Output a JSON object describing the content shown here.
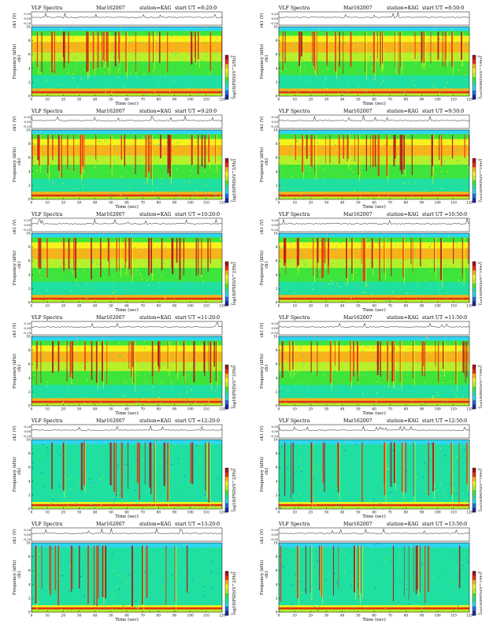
{
  "page": {
    "caption": "VLF Spectra",
    "date": "Mar162007",
    "station": "station=KAG",
    "start_prefix": "start  UT ="
  },
  "panel_text": {
    "amp_label": "ch1 (V)",
    "freq_label": "Frequency (kHz)",
    "channel_label": "ch1",
    "time_label": "Time (sec)",
    "colorbar_label": "log10(PSD)(V^2/Hz)"
  },
  "colors": {
    "colormap": [
      "#1a2a9a",
      "#1f6fe0",
      "#2fd6f0",
      "#1fe0a0",
      "#3fe43a",
      "#b6f02a",
      "#f7f31a",
      "#f8b21a",
      "#e8300f",
      "#a8101a"
    ]
  },
  "chart_data": [
    {
      "type": "heatmap",
      "start_ut": "8:20:0",
      "xlim": [
        0,
        120
      ],
      "ylim": [
        0,
        10
      ],
      "x_ticks": [
        0,
        10,
        20,
        30,
        40,
        50,
        60,
        70,
        80,
        90,
        100,
        110,
        120
      ],
      "y_ticks": [
        0,
        2,
        4,
        6,
        8,
        10
      ],
      "amp_ticks": [
        "0.20",
        "0.00",
        "-0.20"
      ],
      "colorbar_ticks": [
        "-5",
        "-7"
      ],
      "activity": "strong"
    },
    {
      "type": "heatmap",
      "start_ut": "8:50:0",
      "xlim": [
        0,
        120
      ],
      "ylim": [
        0,
        10
      ],
      "x_ticks": [
        0,
        10,
        20,
        30,
        40,
        50,
        60,
        70,
        80,
        90,
        100,
        110,
        120
      ],
      "y_ticks": [
        0,
        2,
        4,
        6,
        8,
        10
      ],
      "amp_ticks": [
        "0.20",
        "0.00",
        "-0.20"
      ],
      "colorbar_ticks": [
        "-5",
        "-7"
      ],
      "activity": "strong"
    },
    {
      "type": "heatmap",
      "start_ut": "9:20:0",
      "xlim": [
        0,
        120
      ],
      "ylim": [
        0,
        10
      ],
      "x_ticks": [
        0,
        10,
        20,
        30,
        40,
        50,
        60,
        70,
        80,
        90,
        100,
        110,
        120
      ],
      "y_ticks": [
        0,
        2,
        4,
        6,
        8,
        10
      ],
      "amp_ticks": [
        "0.20",
        "0.00",
        "-0.20"
      ],
      "colorbar_ticks": [
        "-5",
        "-7"
      ],
      "activity": "strong"
    },
    {
      "type": "heatmap",
      "start_ut": "9:50:0",
      "xlim": [
        0,
        120
      ],
      "ylim": [
        0,
        10
      ],
      "x_ticks": [
        0,
        10,
        20,
        30,
        40,
        50,
        60,
        70,
        80,
        90,
        100,
        110,
        120
      ],
      "y_ticks": [
        0,
        2,
        4,
        6,
        8,
        10
      ],
      "amp_ticks": [
        "0.20",
        "0.00",
        "-0.20"
      ],
      "colorbar_ticks": [
        "-5",
        "-7"
      ],
      "activity": "strong"
    },
    {
      "type": "heatmap",
      "start_ut": "10:20:0",
      "xlim": [
        0,
        120
      ],
      "ylim": [
        0,
        10
      ],
      "x_ticks": [
        0,
        10,
        20,
        30,
        40,
        50,
        60,
        70,
        80,
        90,
        100,
        110,
        120
      ],
      "y_ticks": [
        0,
        2,
        4,
        6,
        8,
        10
      ],
      "amp_ticks": [
        "0.20",
        "0.00",
        "-0.20"
      ],
      "colorbar_ticks": [
        "-5",
        "-7"
      ],
      "activity": "strong"
    },
    {
      "type": "heatmap",
      "start_ut": "10:50:0",
      "xlim": [
        0,
        120
      ],
      "ylim": [
        0,
        10
      ],
      "x_ticks": [
        0,
        10,
        20,
        30,
        40,
        50,
        60,
        70,
        80,
        90,
        100,
        110,
        120
      ],
      "y_ticks": [
        0,
        2,
        4,
        6,
        8,
        10
      ],
      "amp_ticks": [
        "0.20",
        "0.00",
        "-0.20"
      ],
      "colorbar_ticks": [
        "-5",
        "-7"
      ],
      "activity": "strong"
    },
    {
      "type": "heatmap",
      "start_ut": "11:20:0",
      "xlim": [
        0,
        120
      ],
      "ylim": [
        0,
        10
      ],
      "x_ticks": [
        0,
        10,
        20,
        30,
        40,
        50,
        60,
        70,
        80,
        90,
        100,
        110,
        120
      ],
      "y_ticks": [
        0,
        2,
        4,
        6,
        8,
        10
      ],
      "amp_ticks": [
        "0.20",
        "0.00",
        "-0.20"
      ],
      "colorbar_ticks": [
        "-5",
        "-7"
      ],
      "activity": "strong"
    },
    {
      "type": "heatmap",
      "start_ut": "11:50:0",
      "xlim": [
        0,
        120
      ],
      "ylim": [
        0,
        10
      ],
      "x_ticks": [
        0,
        10,
        20,
        30,
        40,
        50,
        60,
        70,
        80,
        90,
        100,
        110,
        120
      ],
      "y_ticks": [
        0,
        2,
        4,
        6,
        8,
        10
      ],
      "amp_ticks": [
        "0.20",
        "0.00",
        "-0.20"
      ],
      "colorbar_ticks": [
        "-5",
        "-7"
      ],
      "activity": "strong"
    },
    {
      "type": "heatmap",
      "start_ut": "12:20:0",
      "xlim": [
        0,
        120
      ],
      "ylim": [
        0,
        10
      ],
      "x_ticks": [
        0,
        10,
        20,
        30,
        40,
        50,
        60,
        70,
        80,
        90,
        100,
        110,
        120
      ],
      "y_ticks": [
        0,
        2,
        4,
        6,
        8,
        10
      ],
      "amp_ticks": [
        "0.20",
        "0.00",
        "-0.20"
      ],
      "colorbar_ticks": [
        "-5",
        "-7"
      ],
      "activity": "weak"
    },
    {
      "type": "heatmap",
      "start_ut": "12:50:0",
      "xlim": [
        0,
        120
      ],
      "ylim": [
        0,
        10
      ],
      "x_ticks": [
        0,
        10,
        20,
        30,
        40,
        50,
        60,
        70,
        80,
        90,
        100,
        110,
        120
      ],
      "y_ticks": [
        0,
        2,
        4,
        6,
        8,
        10
      ],
      "amp_ticks": [
        "0.20",
        "0.00",
        "-0.20"
      ],
      "colorbar_ticks": [
        "-5",
        "-7"
      ],
      "activity": "weak"
    },
    {
      "type": "heatmap",
      "start_ut": "13:20:0",
      "xlim": [
        0,
        120
      ],
      "ylim": [
        0,
        10
      ],
      "x_ticks": [
        0,
        10,
        20,
        30,
        40,
        50,
        60,
        70,
        80,
        90,
        100,
        110,
        120
      ],
      "y_ticks": [
        0,
        2,
        4,
        6,
        8,
        10
      ],
      "amp_ticks": [
        "0.20",
        "0.00",
        "-0.20"
      ],
      "colorbar_ticks": [
        "-5",
        "-7"
      ],
      "activity": "weak"
    },
    {
      "type": "heatmap",
      "start_ut": "13:50:0",
      "xlim": [
        0,
        120
      ],
      "ylim": [
        0,
        10
      ],
      "x_ticks": [
        0,
        10,
        20,
        30,
        40,
        50,
        60,
        70,
        80,
        90,
        100,
        110,
        120
      ],
      "y_ticks": [
        0,
        2,
        4,
        6,
        8,
        10
      ],
      "amp_ticks": [
        "0.20",
        "0.00",
        "-0.20"
      ],
      "colorbar_ticks": [
        "-5",
        "-7"
      ],
      "activity": "weak"
    }
  ]
}
